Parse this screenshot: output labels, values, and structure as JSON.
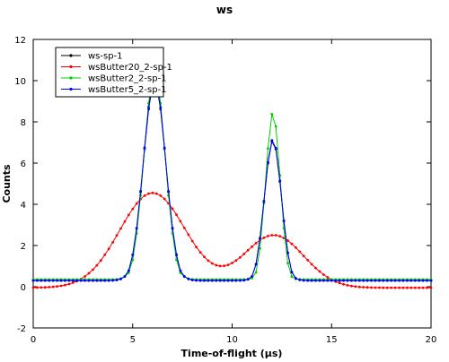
{
  "chart_data": {
    "type": "line",
    "title": "ws",
    "xlabel": "Time-of-flight (μs)",
    "ylabel": "Counts",
    "xlim": [
      0,
      20
    ],
    "ylim": [
      -2,
      12
    ],
    "xticks": [
      0,
      5,
      10,
      15,
      20
    ],
    "yticks": [
      -2,
      0,
      2,
      4,
      6,
      8,
      10,
      12
    ],
    "grid": false,
    "legend_position": "top-left",
    "series": [
      {
        "name": "ws-sp-1",
        "color": "#000000",
        "peaks": [
          [
            6.1,
            9.65,
            0.55
          ],
          [
            12.05,
            6.8,
            0.42
          ]
        ],
        "baseline": 0.3,
        "dip": 0.12
      },
      {
        "name": "wsButter20_2-sp-1",
        "color": "#ff0000",
        "peaks": [
          [
            6.0,
            4.6,
            1.65
          ],
          [
            12.1,
            2.55,
            1.5
          ]
        ],
        "baseline": -0.05,
        "dip": 0
      },
      {
        "name": "wsButter2_2-sp-1",
        "color": "#00cc00",
        "peaks": [
          [
            6.1,
            10.1,
            0.52
          ],
          [
            12.05,
            8.1,
            0.36
          ]
        ],
        "baseline": 0.35,
        "dip": 0.15
      },
      {
        "name": "wsButter5_2-sp-1",
        "color": "#0000ff",
        "peaks": [
          [
            6.1,
            9.75,
            0.55
          ],
          [
            12.05,
            6.85,
            0.42
          ]
        ],
        "baseline": 0.3,
        "dip": 0.12
      }
    ],
    "sample_step": 0.2
  }
}
